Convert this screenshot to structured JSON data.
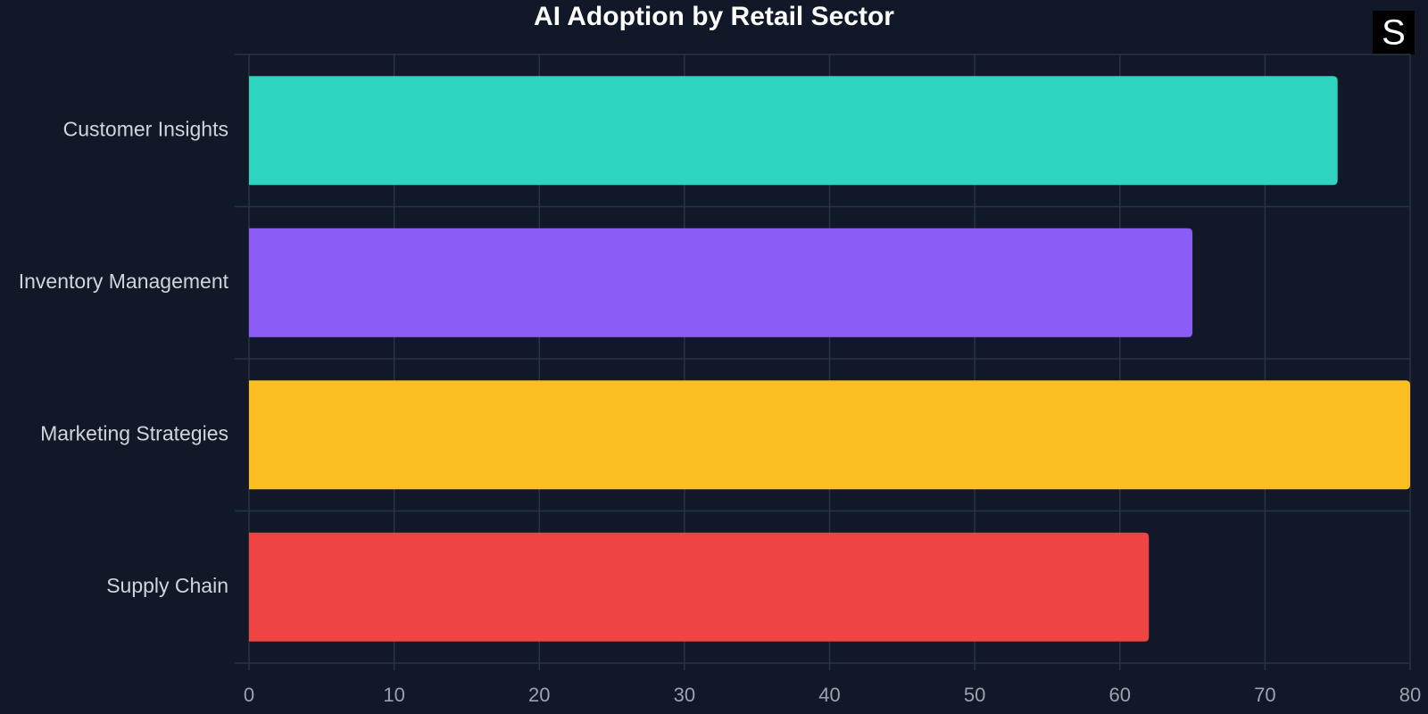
{
  "logo": "S",
  "chart_data": {
    "type": "bar",
    "orientation": "horizontal",
    "title": "AI Adoption by Retail Sector",
    "categories": [
      "Customer Insights",
      "Inventory Management",
      "Marketing Strategies",
      "Supply Chain"
    ],
    "values": [
      75,
      65,
      80,
      62
    ],
    "colors": [
      "#2dd4bf",
      "#8b5cf6",
      "#fbbf24",
      "#ef4444"
    ],
    "xlim": [
      0,
      80
    ],
    "xticks": [
      0,
      10,
      20,
      30,
      40,
      50,
      60,
      70,
      80
    ],
    "grid": true
  }
}
